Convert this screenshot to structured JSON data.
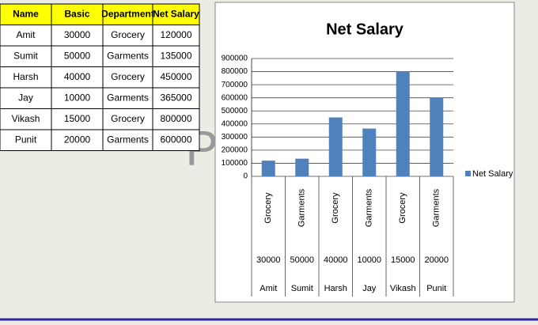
{
  "table": {
    "header": [
      "Name",
      "Basic",
      "Department",
      "Net Salary"
    ],
    "rows": [
      [
        "Amit",
        30000,
        "Grocery",
        120000
      ],
      [
        "Sumit",
        50000,
        "Garments",
        135000
      ],
      [
        "Harsh",
        40000,
        "Grocery",
        450000
      ],
      [
        "Jay",
        10000,
        "Garments",
        365000
      ],
      [
        "Vikash",
        15000,
        "Grocery",
        800000
      ],
      [
        "Punit",
        20000,
        "Garments",
        600000
      ]
    ]
  },
  "overlay_text": "P",
  "chart_data": {
    "type": "bar",
    "title": "Net Salary",
    "categories": [
      "Amit",
      "Sumit",
      "Harsh",
      "Jay",
      "Vikash",
      "Punit"
    ],
    "basic_labels": [
      "30000",
      "50000",
      "40000",
      "10000",
      "15000",
      "20000"
    ],
    "department_labels": [
      "Grocery",
      "Garments",
      "Grocery",
      "Garments",
      "Grocery",
      "Garments"
    ],
    "series": [
      {
        "name": "Net Salary",
        "color": "#4f81bd",
        "values": [
          120000,
          135000,
          450000,
          365000,
          800000,
          600000
        ]
      }
    ],
    "ylim": [
      0,
      900000
    ],
    "yticks": [
      0,
      100000,
      200000,
      300000,
      400000,
      500000,
      600000,
      700000,
      800000,
      900000
    ],
    "grid": true,
    "legend": "right"
  }
}
